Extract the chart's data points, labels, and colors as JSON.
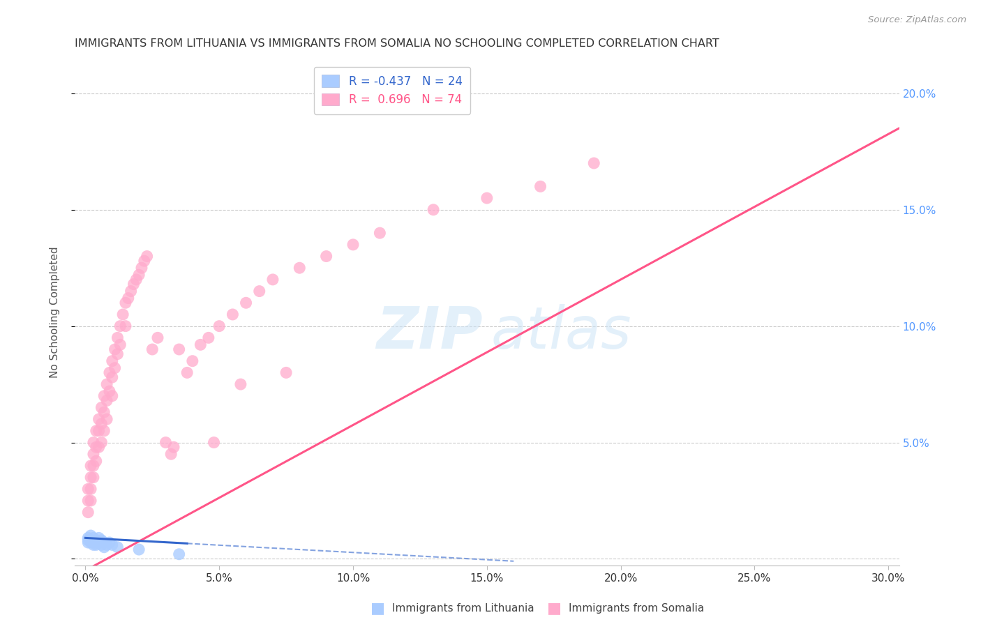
{
  "title": "IMMIGRANTS FROM LITHUANIA VS IMMIGRANTS FROM SOMALIA NO SCHOOLING COMPLETED CORRELATION CHART",
  "source": "Source: ZipAtlas.com",
  "ylabel": "No Schooling Completed",
  "watermark_zip": "ZIP",
  "watermark_atlas": "atlas",
  "lithuania_color": "#aaccff",
  "somalia_color": "#ffaacc",
  "lithuania_line_color": "#3366cc",
  "somalia_line_color": "#ff5588",
  "background_color": "#ffffff",
  "grid_color": "#cccccc",
  "title_color": "#333333",
  "right_tick_color": "#5599ff",
  "legend_blue_color": "#aaccff",
  "legend_pink_color": "#ffaacc",
  "legend_blue_text_color": "#3366cc",
  "legend_pink_text_color": "#ff5588",
  "bottom_label_color": "#444444",
  "source_color": "#999999",
  "xlim": [
    -0.004,
    0.304
  ],
  "ylim": [
    -0.003,
    0.215
  ],
  "x_ticks": [
    0.0,
    0.05,
    0.1,
    0.15,
    0.2,
    0.25,
    0.3
  ],
  "y_ticks": [
    0.0,
    0.05,
    0.1,
    0.15,
    0.2
  ],
  "x_tick_labels": [
    "0.0%",
    "5.0%",
    "10.0%",
    "15.0%",
    "20.0%",
    "25.0%",
    "30.0%"
  ],
  "y_tick_labels_right": [
    "",
    "5.0%",
    "10.0%",
    "15.0%",
    "20.0%"
  ],
  "legend_label_1": "R = -0.437   N = 24",
  "legend_label_2": "R =  0.696   N = 74",
  "bottom_label_1": "Immigrants from Lithuania",
  "bottom_label_2": "Immigrants from Somalia",
  "lith_x": [
    0.001,
    0.001,
    0.001,
    0.002,
    0.002,
    0.002,
    0.003,
    0.003,
    0.003,
    0.004,
    0.004,
    0.004,
    0.005,
    0.005,
    0.006,
    0.006,
    0.007,
    0.007,
    0.008,
    0.009,
    0.01,
    0.012,
    0.02,
    0.035
  ],
  "lith_y": [
    0.009,
    0.008,
    0.007,
    0.01,
    0.008,
    0.007,
    0.009,
    0.007,
    0.006,
    0.008,
    0.007,
    0.006,
    0.009,
    0.007,
    0.008,
    0.006,
    0.007,
    0.005,
    0.006,
    0.007,
    0.006,
    0.005,
    0.004,
    0.002
  ],
  "som_x": [
    0.001,
    0.001,
    0.001,
    0.002,
    0.002,
    0.002,
    0.002,
    0.003,
    0.003,
    0.003,
    0.003,
    0.004,
    0.004,
    0.004,
    0.005,
    0.005,
    0.005,
    0.006,
    0.006,
    0.006,
    0.007,
    0.007,
    0.007,
    0.008,
    0.008,
    0.008,
    0.009,
    0.009,
    0.01,
    0.01,
    0.01,
    0.011,
    0.011,
    0.012,
    0.012,
    0.013,
    0.013,
    0.014,
    0.015,
    0.015,
    0.016,
    0.017,
    0.018,
    0.019,
    0.02,
    0.021,
    0.022,
    0.023,
    0.025,
    0.027,
    0.03,
    0.032,
    0.035,
    0.038,
    0.04,
    0.043,
    0.046,
    0.05,
    0.055,
    0.06,
    0.065,
    0.07,
    0.08,
    0.09,
    0.1,
    0.11,
    0.13,
    0.15,
    0.17,
    0.19,
    0.033,
    0.048,
    0.058,
    0.075
  ],
  "som_y": [
    0.03,
    0.025,
    0.02,
    0.04,
    0.035,
    0.03,
    0.025,
    0.05,
    0.045,
    0.04,
    0.035,
    0.055,
    0.048,
    0.042,
    0.06,
    0.055,
    0.048,
    0.065,
    0.058,
    0.05,
    0.07,
    0.063,
    0.055,
    0.075,
    0.068,
    0.06,
    0.08,
    0.072,
    0.085,
    0.078,
    0.07,
    0.09,
    0.082,
    0.095,
    0.088,
    0.1,
    0.092,
    0.105,
    0.11,
    0.1,
    0.112,
    0.115,
    0.118,
    0.12,
    0.122,
    0.125,
    0.128,
    0.13,
    0.09,
    0.095,
    0.05,
    0.045,
    0.09,
    0.08,
    0.085,
    0.092,
    0.095,
    0.1,
    0.105,
    0.11,
    0.115,
    0.12,
    0.125,
    0.13,
    0.135,
    0.14,
    0.15,
    0.155,
    0.16,
    0.17,
    0.048,
    0.05,
    0.075,
    0.08
  ],
  "somalia_line_x0": 0.0,
  "somalia_line_x1": 0.304,
  "somalia_line_y0": -0.005,
  "somalia_line_y1": 0.185,
  "lith_line_solid_x0": 0.0,
  "lith_line_solid_x1": 0.038,
  "lith_line_x0": 0.0,
  "lith_line_x1": 0.16,
  "lith_line_y0": 0.009,
  "lith_line_y1": -0.001
}
